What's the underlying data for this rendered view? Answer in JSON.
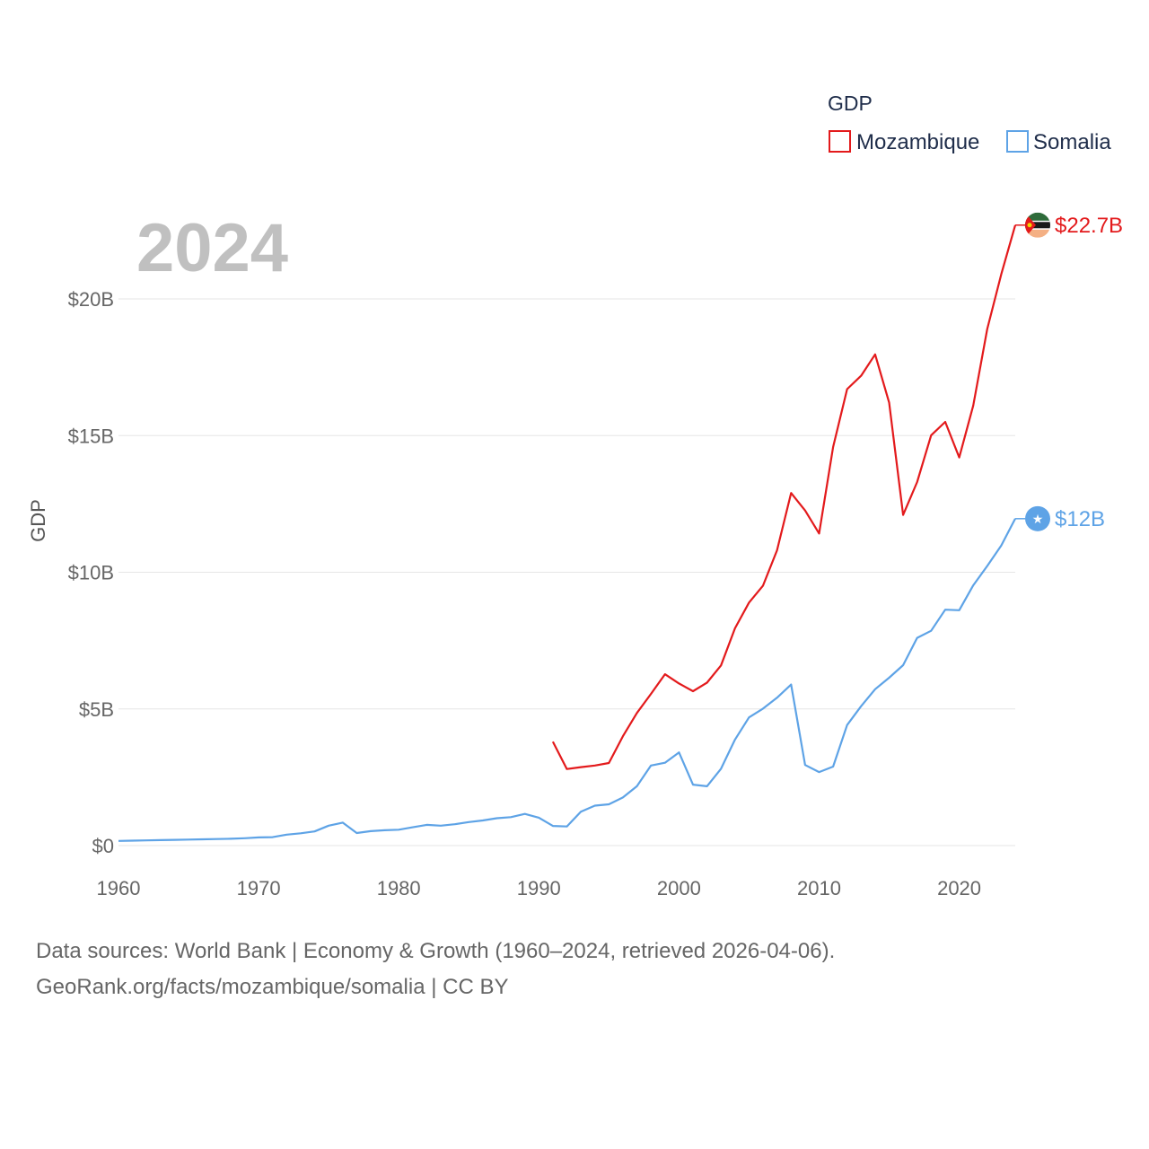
{
  "chart_data": {
    "type": "line",
    "year_label": "2024",
    "ylabel": "GDP",
    "xlim": [
      1960,
      2024
    ],
    "ylim": [
      0,
      23000000000
    ],
    "x_ticks": [
      1960,
      1970,
      1980,
      1990,
      2000,
      2010,
      2020
    ],
    "y_ticks": [
      {
        "value": 0,
        "label": "$0"
      },
      {
        "value": 5000000000,
        "label": "$5B"
      },
      {
        "value": 10000000000,
        "label": "$10B"
      },
      {
        "value": 15000000000,
        "label": "$15B"
      },
      {
        "value": 20000000000,
        "label": "$20B"
      }
    ],
    "legend": {
      "title": "GDP",
      "position": "top-right"
    },
    "series": [
      {
        "name": "Mozambique",
        "color": "#e31a1c",
        "end_label": "$22.7B",
        "icon": "mozambique-flag-icon",
        "x": [
          1991,
          1992,
          1993,
          1994,
          1995,
          1996,
          1997,
          1998,
          1999,
          2000,
          2001,
          2002,
          2003,
          2004,
          2005,
          2006,
          2007,
          2008,
          2009,
          2010,
          2011,
          2012,
          2013,
          2014,
          2015,
          2016,
          2017,
          2018,
          2019,
          2020,
          2021,
          2022,
          2023,
          2024
        ],
        "values": [
          3800000000,
          2800000000,
          2870000000,
          2930000000,
          3020000000,
          4000000000,
          4850000000,
          5550000000,
          6270000000,
          5930000000,
          5650000000,
          5960000000,
          6590000000,
          7950000000,
          8890000000,
          9510000000,
          10800000000,
          12900000000,
          12260000000,
          11420000000,
          14580000000,
          16700000000,
          17190000000,
          17970000000,
          16210000000,
          12100000000,
          13300000000,
          15010000000,
          15500000000,
          14200000000,
          16100000000,
          18900000000,
          20900000000,
          22700000000
        ]
      },
      {
        "name": "Somalia",
        "color": "#5ea3e6",
        "end_label": "$12B",
        "icon": "somalia-flag-icon",
        "x": [
          1960,
          1961,
          1962,
          1963,
          1964,
          1965,
          1966,
          1967,
          1968,
          1969,
          1970,
          1971,
          1972,
          1973,
          1974,
          1975,
          1976,
          1977,
          1978,
          1979,
          1980,
          1981,
          1982,
          1983,
          1984,
          1985,
          1986,
          1987,
          1988,
          1989,
          1990,
          1991,
          1992,
          1993,
          1994,
          1995,
          1996,
          1997,
          1998,
          1999,
          2000,
          2001,
          2002,
          2003,
          2004,
          2005,
          2006,
          2007,
          2008,
          2009,
          2010,
          2011,
          2012,
          2013,
          2014,
          2015,
          2016,
          2017,
          2018,
          2019,
          2020,
          2021,
          2022,
          2023,
          2024
        ],
        "values": [
          170000000,
          180000000,
          190000000,
          200000000,
          210000000,
          220000000,
          230000000,
          240000000,
          250000000,
          270000000,
          300000000,
          310000000,
          400000000,
          450000000,
          520000000,
          730000000,
          840000000,
          460000000,
          530000000,
          560000000,
          580000000,
          670000000,
          760000000,
          730000000,
          780000000,
          860000000,
          920000000,
          1000000000,
          1040000000,
          1160000000,
          1020000000,
          720000000,
          700000000,
          1240000000,
          1460000000,
          1510000000,
          1760000000,
          2170000000,
          2930000000,
          3030000000,
          3410000000,
          2230000000,
          2170000000,
          2810000000,
          3880000000,
          4690000000,
          5010000000,
          5410000000,
          5890000000,
          2950000000,
          2690000000,
          2890000000,
          4410000000,
          5100000000,
          5720000000,
          6140000000,
          6600000000,
          7600000000,
          7860000000,
          8630000000,
          8610000000,
          9520000000,
          10230000000,
          10980000000,
          11960000000
        ]
      }
    ]
  },
  "footer": {
    "line1": "Data sources: World Bank | Economy & Growth (1960–2024, retrieved 2026-04-06).",
    "line2": "GeoRank.org/facts/mozambique/somalia | CC BY"
  }
}
